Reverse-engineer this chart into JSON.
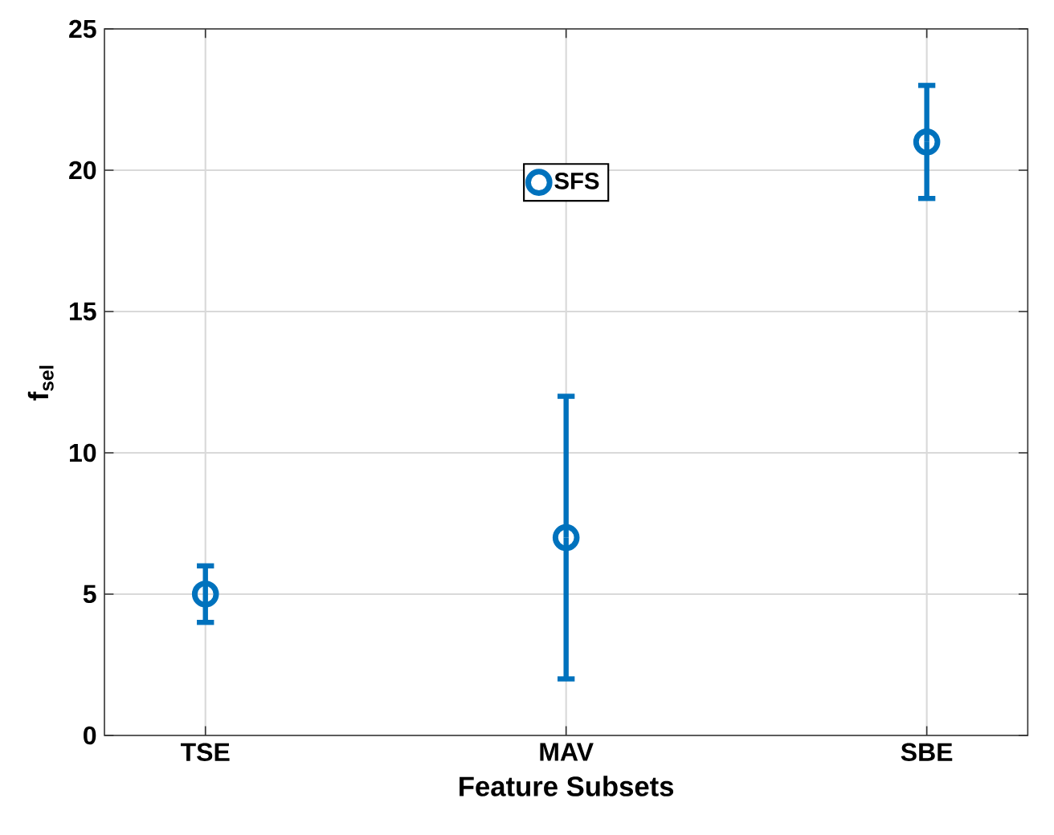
{
  "chart_data": {
    "type": "scatter",
    "xlabel": "Feature Subsets",
    "ylabel": "f$_{sel}$",
    "categories": [
      "TSE",
      "MAV",
      "SBE"
    ],
    "series": [
      {
        "name": "SFS",
        "color": "#0072bd",
        "values": [
          5,
          7,
          21
        ],
        "errors": [
          [
            4,
            6
          ],
          [
            2,
            12
          ],
          [
            19,
            23
          ]
        ]
      }
    ],
    "ylim": [
      0,
      25
    ],
    "yticks": [
      0,
      5,
      10,
      15,
      20,
      25
    ],
    "grid": true,
    "legend": "top",
    "marker": "circle"
  }
}
